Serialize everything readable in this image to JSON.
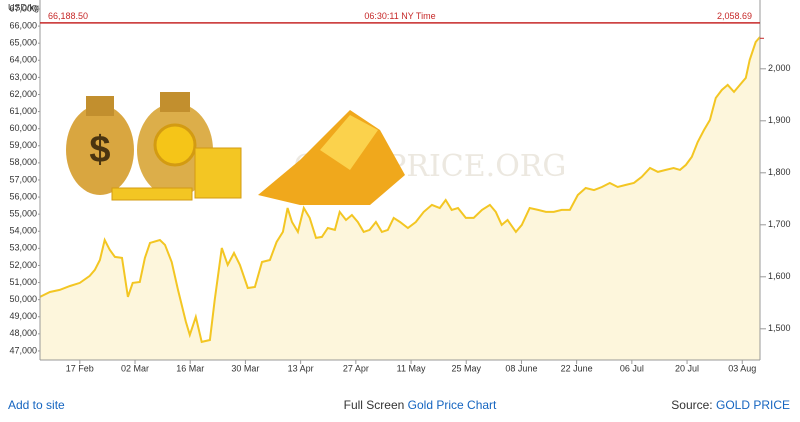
{
  "chart_data": {
    "type": "area",
    "y_label": "USD/kg",
    "watermark": "GOLDPRICE.ORG",
    "time_label": "06:30:11 NY Time",
    "price_line": {
      "value": 66188.5,
      "label": "66,188.50",
      "color": "#c62828"
    },
    "price_oz": {
      "value": 2058.69,
      "label": "2,058.69"
    },
    "color": "#f3c623",
    "area_color": "#fdf6dc",
    "xlim": [
      -10.1,
      172.5
    ],
    "xticks": [
      {
        "value": 0,
        "label": "17 Feb"
      },
      {
        "value": 14,
        "label": "02 Mar"
      },
      {
        "value": 28,
        "label": "16 Mar"
      },
      {
        "value": 42,
        "label": "30 Mar"
      },
      {
        "value": 56,
        "label": "13 Apr"
      },
      {
        "value": 70,
        "label": "27 Apr"
      },
      {
        "value": 84,
        "label": "11 May"
      },
      {
        "value": 98,
        "label": "25 May"
      },
      {
        "value": 112,
        "label": "08 June"
      },
      {
        "value": 126,
        "label": "22 June"
      },
      {
        "value": 140,
        "label": "06 Jul"
      },
      {
        "value": 154,
        "label": "20 Jul"
      },
      {
        "value": 168,
        "label": "03 Aug"
      }
    ],
    "ylim": [
      46470,
      67000
    ],
    "yticks": [
      {
        "value": 47000,
        "label": "47,000"
      },
      {
        "value": 48000,
        "label": "48,000"
      },
      {
        "value": 49000,
        "label": "49,000"
      },
      {
        "value": 50000,
        "label": "50,000"
      },
      {
        "value": 51000,
        "label": "51,000"
      },
      {
        "value": 52000,
        "label": "52,000"
      },
      {
        "value": 53000,
        "label": "53,000"
      },
      {
        "value": 54000,
        "label": "54,000"
      },
      {
        "value": 55000,
        "label": "55,000"
      },
      {
        "value": 56000,
        "label": "56,000"
      },
      {
        "value": 57000,
        "label": "57,000"
      },
      {
        "value": 58000,
        "label": "58,000"
      },
      {
        "value": 59000,
        "label": "59,000"
      },
      {
        "value": 60000,
        "label": "60,000"
      },
      {
        "value": 61000,
        "label": "61,000"
      },
      {
        "value": 62000,
        "label": "62,000"
      },
      {
        "value": 63000,
        "label": "63,000"
      },
      {
        "value": 64000,
        "label": "64,000"
      },
      {
        "value": 65000,
        "label": "65,000"
      },
      {
        "value": 66000,
        "label": "66,000"
      },
      {
        "value": 67000,
        "label": "67,000"
      }
    ],
    "y2lim": [
      1440,
      2115
    ],
    "y2ticks": [
      {
        "value": 1500,
        "label": "1,500"
      },
      {
        "value": 1600,
        "label": "1,600"
      },
      {
        "value": 1700,
        "label": "1,700"
      },
      {
        "value": 1800,
        "label": "1,800"
      },
      {
        "value": 1900,
        "label": "1,900"
      },
      {
        "value": 2000,
        "label": "2,000"
      }
    ],
    "x": [
      -10.1,
      -7.6,
      -5.1,
      -2.5,
      0,
      2.5,
      3.8,
      5.1,
      6.3,
      7.6,
      8.9,
      10.7,
      12.2,
      13.4,
      15.2,
      16.5,
      17.8,
      20.3,
      21.6,
      23.3,
      24.9,
      26.9,
      27.9,
      29.4,
      30.9,
      33.0,
      34.2,
      36.0,
      37.5,
      39.1,
      40.6,
      42.6,
      44.4,
      46.2,
      48.2,
      49.9,
      51.5,
      52.7,
      53.8,
      55.3,
      56.8,
      58.3,
      59.9,
      61.4,
      62.9,
      64.7,
      65.9,
      67.5,
      69.0,
      70.5,
      72.0,
      73.5,
      75.1,
      76.6,
      78.1,
      79.6,
      81.2,
      83.2,
      85.2,
      87.2,
      89.3,
      91.3,
      92.8,
      94.3,
      95.9,
      97.9,
      99.9,
      102.0,
      104.0,
      105.5,
      107.0,
      108.5,
      110.6,
      112.1,
      114.1,
      116.2,
      118.2,
      120.2,
      122.2,
      124.3,
      126.3,
      128.3,
      130.4,
      132.4,
      134.4,
      136.4,
      138.5,
      140.5,
      142.5,
      144.6,
      146.6,
      148.6,
      150.6,
      152.2,
      153.7,
      155.2,
      156.7,
      158.3,
      159.8,
      161.3,
      162.8,
      164.3,
      165.9,
      167.4,
      168.9,
      169.9,
      171.4,
      172.5
    ],
    "values": [
      50160,
      50450,
      50570,
      50800,
      50980,
      51390,
      51740,
      52320,
      53490,
      52910,
      52500,
      52440,
      50160,
      50980,
      51030,
      52440,
      53320,
      53490,
      53200,
      52200,
      50570,
      48700,
      47940,
      48990,
      47530,
      47640,
      49980,
      53020,
      52030,
      52730,
      52030,
      50680,
      50740,
      52200,
      52320,
      53370,
      53960,
      55360,
      54540,
      53960,
      55360,
      54780,
      53610,
      53670,
      54190,
      54080,
      55130,
      54660,
      54950,
      54540,
      53960,
      54080,
      54540,
      53960,
      54080,
      54780,
      54540,
      54190,
      54540,
      55130,
      55540,
      55360,
      55830,
      55250,
      55360,
      54780,
      54780,
      55250,
      55540,
      55130,
      54370,
      54660,
      53960,
      54370,
      55360,
      55250,
      55130,
      55130,
      55250,
      55250,
      56120,
      56530,
      56410,
      56590,
      56820,
      56590,
      56710,
      56820,
      57180,
      57700,
      57470,
      57590,
      57700,
      57590,
      57880,
      58350,
      59220,
      59920,
      60510,
      61800,
      62260,
      62560,
      62150,
      62560,
      62970,
      64020,
      65070,
      65360
    ]
  },
  "footer": {
    "add": "Add to site",
    "full_screen": "Full Screen",
    "chart_link": "Gold Price Chart",
    "source_label": "Source:",
    "source": "GOLD PRICE"
  }
}
